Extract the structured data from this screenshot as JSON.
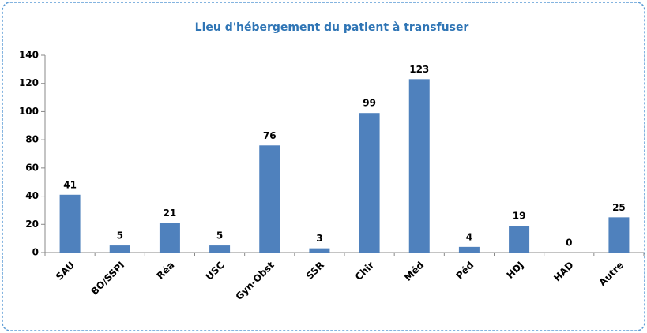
{
  "chart_data": {
    "type": "bar",
    "title": "Lieu d'hébergement du patient à transfuser",
    "categories": [
      "SAU",
      "BO/SSPI",
      "Réa",
      "USC",
      "Gyn-Obst",
      "SSR",
      "Chir",
      "Méd",
      "Péd",
      "HDJ",
      "HAD",
      "Autre"
    ],
    "values": [
      41,
      5,
      21,
      5,
      76,
      3,
      99,
      123,
      4,
      19,
      0,
      25
    ],
    "color": "#4f81bd",
    "ylim": [
      0,
      140
    ],
    "yticks": [
      0,
      20,
      40,
      60,
      80,
      100,
      120,
      140
    ],
    "grid": false
  }
}
